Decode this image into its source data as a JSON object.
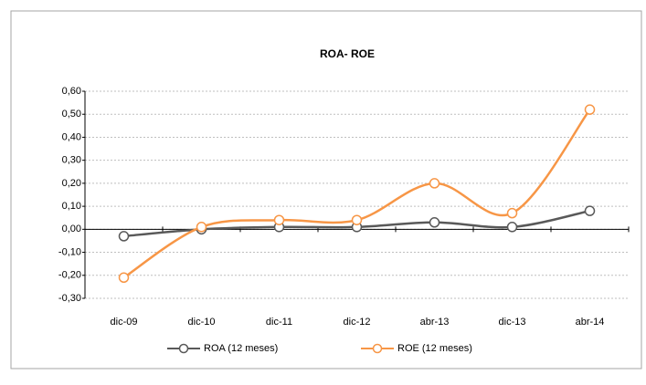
{
  "chart_data": {
    "type": "line",
    "title": "ROA- ROE",
    "categories": [
      "dic-09",
      "dic-10",
      "dic-11",
      "dic-12",
      "abr-13",
      "dic-13",
      "abr-14"
    ],
    "series": [
      {
        "name": "ROA (12 meses)",
        "color": "#595959",
        "values": [
          -0.03,
          0.0,
          0.01,
          0.01,
          0.03,
          0.01,
          0.08
        ]
      },
      {
        "name": "ROE (12 meses)",
        "color": "#f79646",
        "values": [
          -0.21,
          0.01,
          0.04,
          0.04,
          0.2,
          0.07,
          0.52
        ]
      }
    ],
    "ylim": [
      -0.3,
      0.6
    ],
    "yticks": [
      {
        "value": -0.3,
        "label": "-0,30"
      },
      {
        "value": -0.2,
        "label": "-0,20"
      },
      {
        "value": -0.1,
        "label": "-0,10"
      },
      {
        "value": 0,
        "label": "0,00"
      },
      {
        "value": 0.1,
        "label": "0,10"
      },
      {
        "value": 0.2,
        "label": "0,20"
      },
      {
        "value": 0.3,
        "label": "0,30"
      },
      {
        "value": 0.4,
        "label": "0,40"
      },
      {
        "value": 0.5,
        "label": "0,50"
      },
      {
        "value": 0.6,
        "label": "0,60"
      }
    ],
    "grid": true,
    "smooth": true,
    "legend": "bottom"
  }
}
